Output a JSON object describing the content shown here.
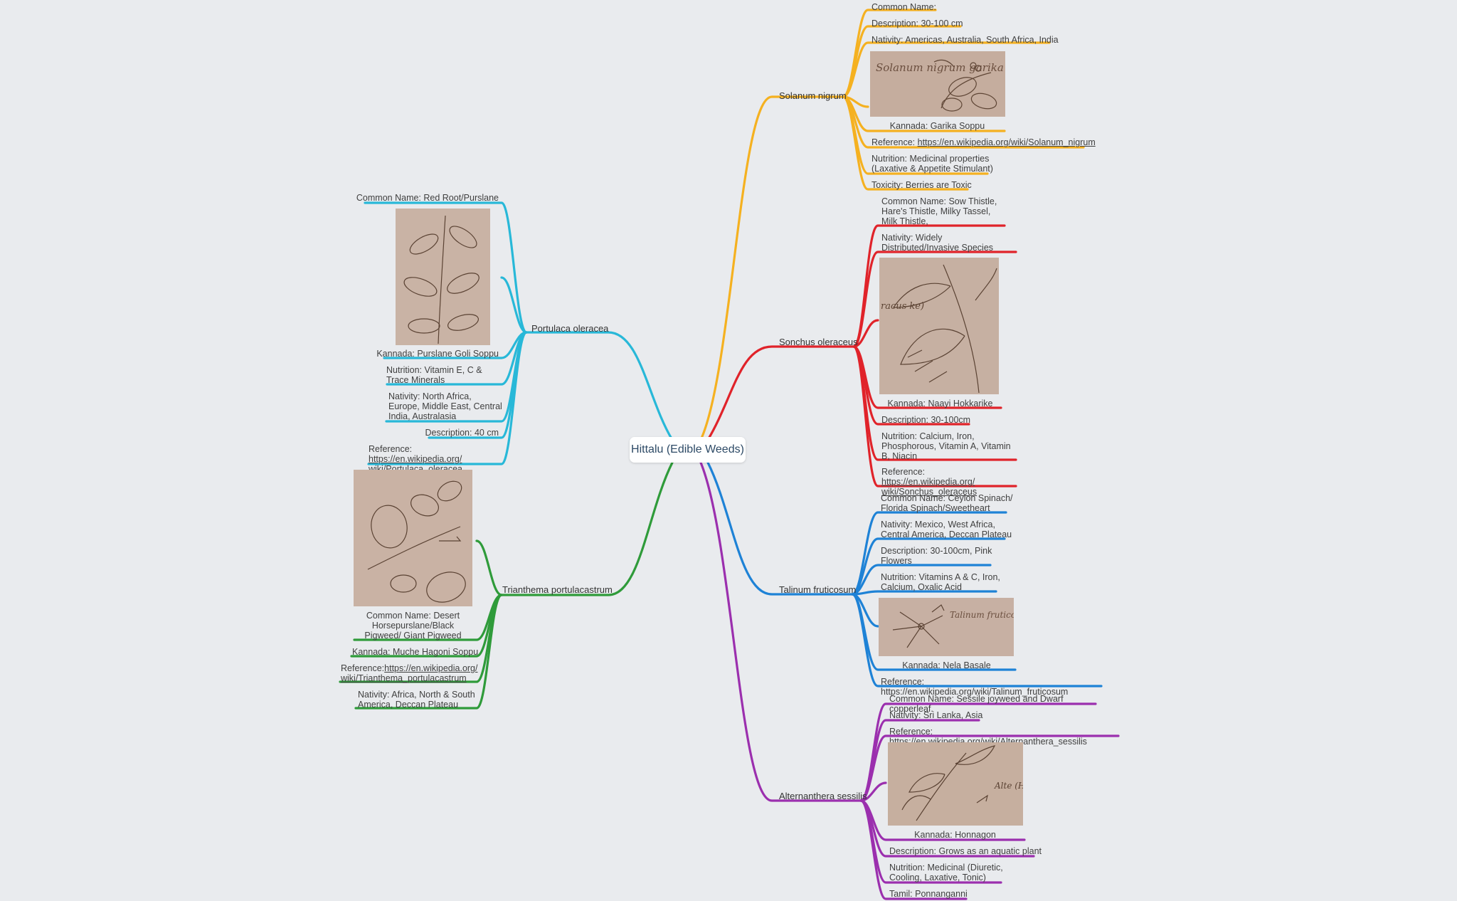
{
  "root": {
    "label": "Hittalu (Edible Weeds)"
  },
  "colors": {
    "solanum": "#f5b120",
    "sonchus": "#e0232a",
    "talinum": "#1e82d6",
    "alternanthera": "#9b2fae",
    "portulaca": "#28b8d8",
    "trianthema": "#2f9b3a",
    "text": "#3f3f3f",
    "background": "#e9ebee",
    "sketch_paper": "#c4ad9f"
  },
  "branches": {
    "solanum": {
      "title": "Solanum nigrum",
      "common_name": "Common Name:",
      "description": "Description: 30-100 cm",
      "nativity": "Nativity: Americas, Australia, South Africa, India",
      "kannada": "Kannada: Garika Soppu",
      "reference_prefix": "Reference: ",
      "reference_link": "https://en.wikipedia.org/wiki/Solanum_nigrum",
      "nutrition": "Nutrition: Medicinal properties (Laxative & Appetite Stimulant)",
      "toxicity": "Toxicity: Berries are Toxic",
      "sketch_text": "Solanum nigrum garika"
    },
    "sonchus": {
      "title": "Sonchus oleraceus",
      "common_name": "Common Name: Sow Thistle, Hare's Thistle, Milky Tassel, Milk Thistle,",
      "nativity": "Nativity: Widely Distributed/Invasive Species",
      "kannada": "Kannada: Naayi Hokkarike",
      "description": "Description: 30-100cm",
      "nutrition": "Nutrition: Calcium, Iron, Phosphorous, Vitamin A, Vitamin B, Niacin",
      "reference_prefix": "Reference: ",
      "reference_link": "https://en.wikipedia.org/ wiki/Sonchus_oleraceus",
      "sketch_text": "racus ke)"
    },
    "talinum": {
      "title": "Talinum fruticosum",
      "common_name": "Common Name: Ceylon Spinach/ Florida Spinach/Sweetheart",
      "nativity": "Nativity: Mexico, West Africa, Central America, Deccan Plateau",
      "description": "Description: 30-100cm, Pink Flowers",
      "nutrition": "Nutrition: Vitamins A & C, Iron, Calcium, Oxalic Acid",
      "kannada": "Kannada: Nela Basale",
      "reference": "Reference: https://en.wikipedia.org/wiki/Talinum_fruticosum",
      "sketch_text": "Talinum fruticosum (Nela basale)"
    },
    "alternanthera": {
      "title": "Alternanthera sessilis",
      "common_name": "Common Name: Sessile joyweed and Dwarf copperleaf.",
      "nativity": "Nativity: Sri Lanka, Asia",
      "reference": "Reference: https://en.wikipedia.org/wiki/Alternanthera_sessilis",
      "kannada": "Kannada: Honnagon",
      "description": "Description: Grows as an aquatic plant",
      "nutrition": "Nutrition: Medicinal (Diuretic, Cooling, Laxative, Tonic)",
      "tamil": "Tamil: Ponnanganni",
      "sketch_text": "Alte (Honna"
    },
    "portulaca": {
      "title": "Portulaca oleracea",
      "common_name": "Common Name: Red Root/Purslane",
      "kannada": "Kannada: Purslane Goli Soppu",
      "nutrition": "Nutrition: Vitamin E, C & Trace Minerals",
      "nativity": "Nativity: North Africa, Europe, Middle East, Central India, Australasia",
      "description": "Description: 40 cm",
      "reference_prefix": "Reference: ",
      "reference_link": "https://en.wikipedia.org/ wiki/Portulaca_oleracea"
    },
    "trianthema": {
      "title": "Trianthema portulacastrum",
      "common_name": "Common Name: Desert Horsepurslane/Black Pigweed/ Giant Pigweed",
      "kannada": "Kannada: Muche Hagoni Soppu",
      "reference_prefix": "Reference:",
      "reference_link": "https://en.wikipedia.org/ wiki/Trianthema_portulacastrum",
      "nativity": "Nativity: Africa, North & South America, Deccan Plateau"
    }
  }
}
